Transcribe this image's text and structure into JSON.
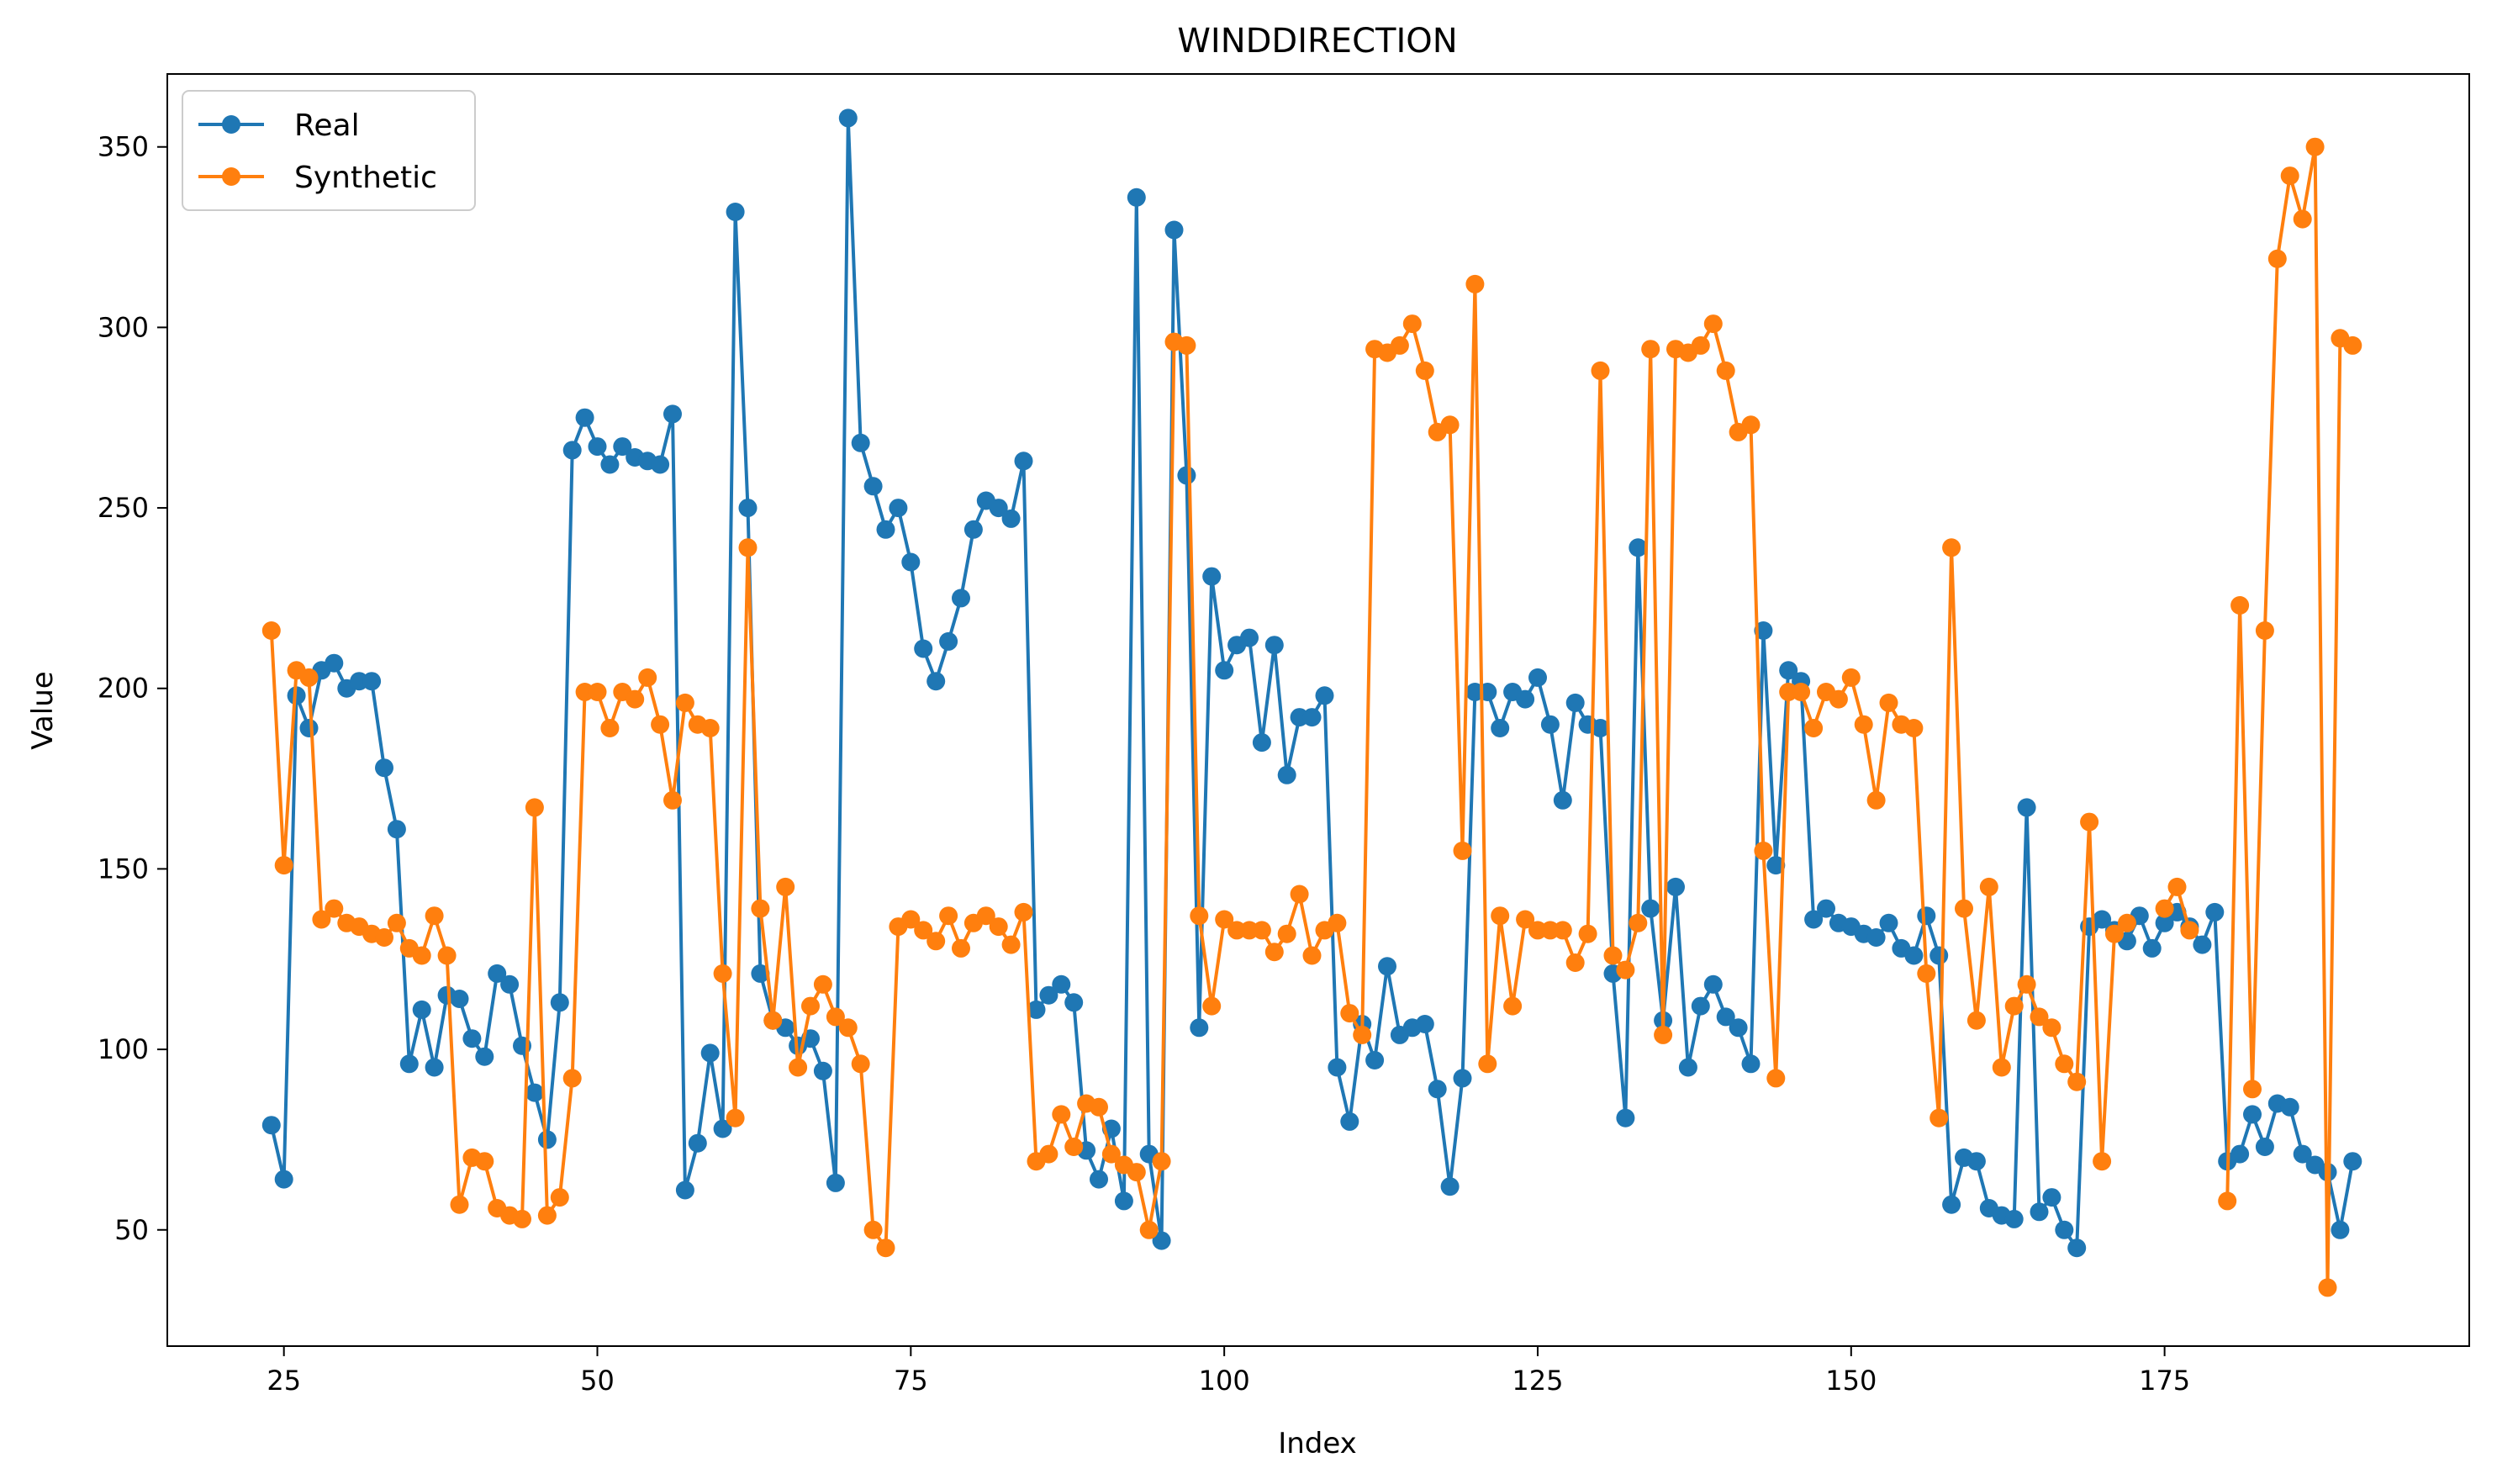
{
  "chart_data": {
    "type": "line",
    "title": "WINDDIRECTION",
    "xlabel": "Index",
    "ylabel": "Value",
    "xlim": [
      15.7,
      199.3
    ],
    "ylim": [
      17.8,
      370.2
    ],
    "xticks": [
      25,
      50,
      75,
      100,
      125,
      150,
      175
    ],
    "yticks": [
      50,
      100,
      150,
      200,
      250,
      300,
      350
    ],
    "grid": false,
    "legend_position": "top-left",
    "x_start": 24,
    "series": [
      {
        "name": "Real",
        "color": "#1f77b4",
        "values": [
          79,
          64,
          198,
          189,
          205,
          207,
          200,
          202,
          202,
          178,
          161,
          96,
          111,
          95,
          115,
          114,
          103,
          98,
          121,
          118,
          101,
          88,
          75,
          113,
          266,
          275,
          267,
          262,
          267,
          264,
          263,
          262,
          276,
          61,
          74,
          99,
          78,
          332,
          250,
          121,
          108,
          106,
          101,
          103,
          94,
          63,
          358,
          268,
          256,
          244,
          250,
          235,
          211,
          202,
          213,
          225,
          244,
          252,
          250,
          247,
          263,
          111,
          115,
          118,
          113,
          72,
          64,
          78,
          58,
          336,
          71,
          47,
          327,
          259,
          106,
          231,
          205,
          212,
          214,
          185,
          212,
          176,
          192,
          192,
          198,
          95,
          80,
          107,
          97,
          123,
          104,
          106,
          107,
          89,
          62,
          92,
          199,
          199,
          189,
          199,
          197,
          203,
          190,
          169,
          196,
          190,
          189,
          121,
          81,
          239,
          139,
          108,
          145,
          95,
          112,
          118,
          109,
          106,
          96,
          216,
          151,
          205,
          202,
          136,
          139,
          135,
          134,
          132,
          131,
          135,
          128,
          126,
          137,
          126,
          57,
          70,
          69,
          56,
          54,
          53,
          167,
          55,
          59,
          50,
          45,
          134,
          136,
          133,
          130,
          137,
          128,
          135,
          138,
          134,
          129,
          138,
          69,
          71,
          82,
          73,
          85,
          84,
          71,
          68,
          66,
          50,
          69
        ]
      },
      {
        "name": "Synthetic",
        "color": "#ff7f0e",
        "values": [
          216,
          151,
          205,
          203,
          136,
          139,
          135,
          134,
          132,
          131,
          135,
          128,
          126,
          137,
          126,
          57,
          70,
          69,
          56,
          54,
          53,
          167,
          54,
          59,
          92,
          199,
          199,
          189,
          199,
          197,
          203,
          190,
          169,
          196,
          190,
          189,
          121,
          81,
          239,
          139,
          108,
          145,
          95,
          112,
          118,
          109,
          106,
          96,
          50,
          45,
          134,
          136,
          133,
          130,
          137,
          128,
          135,
          137,
          134,
          129,
          138,
          69,
          71,
          82,
          73,
          85,
          84,
          71,
          68,
          66,
          50,
          69,
          296,
          295,
          137,
          112,
          136,
          133,
          133,
          133,
          127,
          132,
          143,
          126,
          133,
          135,
          110,
          104,
          294,
          293,
          295,
          301,
          288,
          271,
          273,
          155,
          312,
          96,
          137,
          112,
          136,
          133,
          133,
          133,
          124,
          132,
          288,
          126,
          122,
          135,
          294,
          104,
          294,
          293,
          295,
          301,
          288,
          271,
          273,
          155,
          92,
          199,
          199,
          189,
          199,
          197,
          203,
          190,
          169,
          196,
          190,
          189,
          121,
          81,
          239,
          139,
          108,
          145,
          95,
          112,
          118,
          109,
          106,
          96,
          91,
          163,
          69,
          132,
          135,
          null,
          null,
          139,
          145,
          133,
          null,
          null,
          58,
          223,
          89,
          216,
          319,
          342,
          330,
          350,
          34,
          297,
          295
        ]
      }
    ]
  }
}
